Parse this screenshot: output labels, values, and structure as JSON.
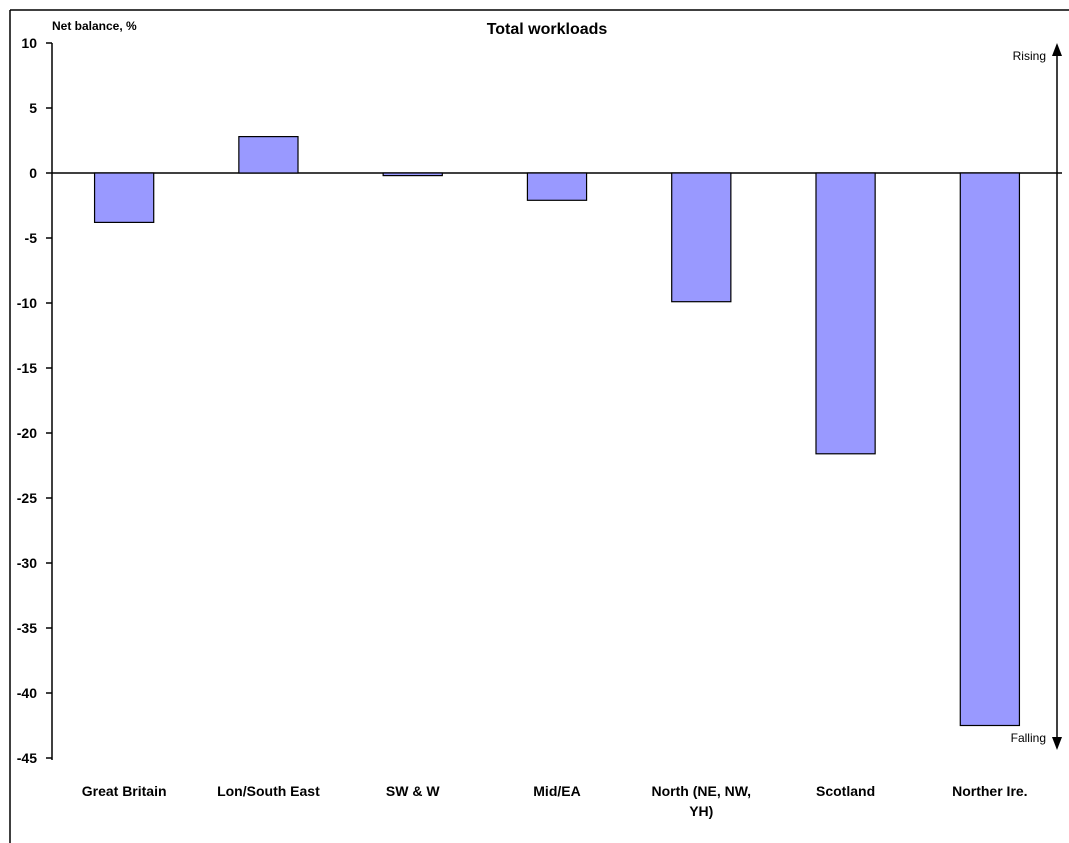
{
  "chart_data": {
    "type": "bar",
    "title": "Total workloads",
    "ylabel": "Net balance, %",
    "xlabel": "",
    "categories": [
      "Great Britain",
      "Lon/South East",
      "SW & W",
      "Mid/EA",
      "North (NE, NW, YH)",
      "Scotland",
      "Norther Ire."
    ],
    "category_lines": [
      [
        "Great Britain"
      ],
      [
        "Lon/South East"
      ],
      [
        "SW & W"
      ],
      [
        "Mid/EA"
      ],
      [
        "North (NE, NW,",
        "YH)"
      ],
      [
        "Scotland"
      ],
      [
        "Norther Ire."
      ]
    ],
    "values": [
      -3.8,
      2.8,
      -0.2,
      -2.1,
      -9.9,
      -21.6,
      -42.5
    ],
    "ylim": [
      -45,
      10
    ],
    "yticks": [
      10,
      5,
      0,
      -5,
      -10,
      -15,
      -20,
      -25,
      -30,
      -35,
      -40,
      -45
    ],
    "bar_color": "#9999ff",
    "grid": false,
    "legend": "none",
    "annotations": {
      "rising": "Rising",
      "falling": "Falling"
    }
  }
}
